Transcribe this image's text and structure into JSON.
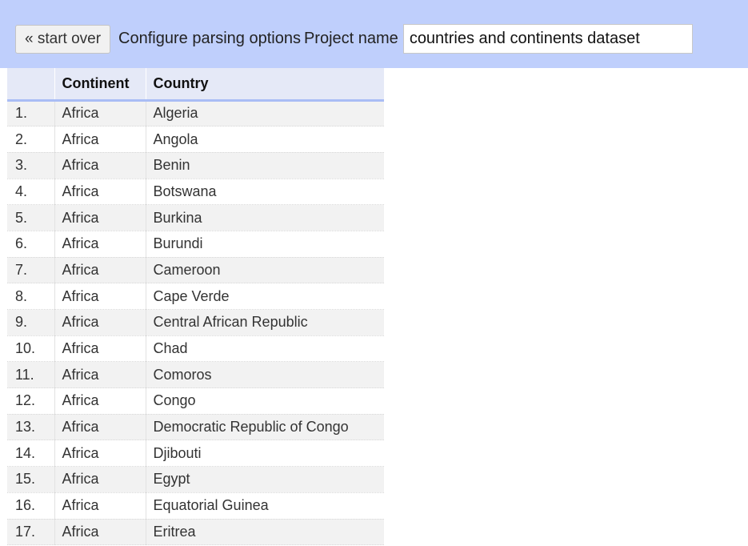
{
  "toolbar": {
    "start_over_label": "« start over",
    "configure_label": "Configure parsing options",
    "project_name_label": "Project name",
    "project_name_value": "countries and continents dataset"
  },
  "table": {
    "columns": [
      "",
      "Continent",
      "Country"
    ],
    "rows": [
      {
        "index": "1.",
        "continent": "Africa",
        "country": "Algeria"
      },
      {
        "index": "2.",
        "continent": "Africa",
        "country": "Angola"
      },
      {
        "index": "3.",
        "continent": "Africa",
        "country": "Benin"
      },
      {
        "index": "4.",
        "continent": "Africa",
        "country": "Botswana"
      },
      {
        "index": "5.",
        "continent": "Africa",
        "country": "Burkina"
      },
      {
        "index": "6.",
        "continent": "Africa",
        "country": "Burundi"
      },
      {
        "index": "7.",
        "continent": "Africa",
        "country": "Cameroon"
      },
      {
        "index": "8.",
        "continent": "Africa",
        "country": "Cape Verde"
      },
      {
        "index": "9.",
        "continent": "Africa",
        "country": "Central African Republic"
      },
      {
        "index": "10.",
        "continent": "Africa",
        "country": "Chad"
      },
      {
        "index": "11.",
        "continent": "Africa",
        "country": "Comoros"
      },
      {
        "index": "12.",
        "continent": "Africa",
        "country": "Congo"
      },
      {
        "index": "13.",
        "continent": "Africa",
        "country": "Democratic Republic of Congo"
      },
      {
        "index": "14.",
        "continent": "Africa",
        "country": "Djibouti"
      },
      {
        "index": "15.",
        "continent": "Africa",
        "country": "Egypt"
      },
      {
        "index": "16.",
        "continent": "Africa",
        "country": "Equatorial Guinea"
      },
      {
        "index": "17.",
        "continent": "Africa",
        "country": "Eritrea"
      }
    ]
  },
  "colors": {
    "toolbar_background": "#bfcffc",
    "header_background": "#e5e9f7",
    "header_underline": "#a9bdf5",
    "odd_row_background": "#f2f2f2"
  }
}
